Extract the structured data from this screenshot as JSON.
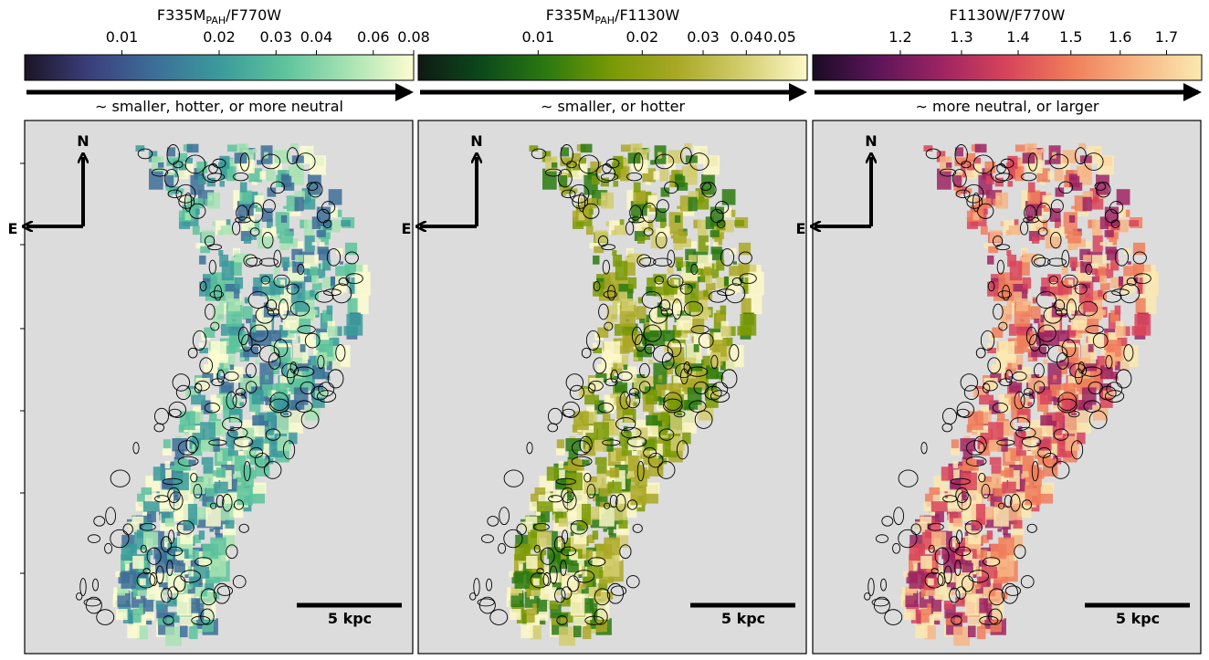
{
  "chart_data": [
    {
      "type": "colorbar",
      "title": [
        "F335M",
        "PAH",
        "/F770W"
      ],
      "log": true,
      "xlim": [
        0.005,
        0.08
      ],
      "xticks": [
        0.01,
        0.02,
        0.03,
        0.04,
        0.06,
        0.08
      ],
      "colormap": [
        "#1b1424",
        "#3b3f7c",
        "#3d6e98",
        "#3b9a9b",
        "#5cc39c",
        "#a7e3b3",
        "#fdfdd0"
      ],
      "annotation": "∼ smaller, hotter, or more neutral",
      "compass": [
        "N",
        "E"
      ],
      "scalebar": "5 kpc"
    },
    {
      "type": "colorbar",
      "title": [
        "F335M",
        "PAH",
        "/F1130W"
      ],
      "log": true,
      "xlim": [
        0.0045,
        0.06
      ],
      "xticks": [
        0.01,
        0.02,
        0.03,
        0.04,
        0.05
      ],
      "colormap": [
        "#0f1a13",
        "#0c4a1c",
        "#2d7a10",
        "#7a9a05",
        "#aaa826",
        "#d2cd6e",
        "#fdf8c8"
      ],
      "annotation": "∼ smaller, or hotter",
      "compass": [
        "N",
        "E"
      ],
      "scalebar": "5 kpc"
    },
    {
      "type": "colorbar",
      "title": "F1130W/F770W",
      "log": true,
      "xlim": [
        1.07,
        1.78
      ],
      "xticks": [
        1.2,
        1.3,
        1.4,
        1.5,
        1.6,
        1.7
      ],
      "colormap": [
        "#1a0b24",
        "#5c1559",
        "#9e2462",
        "#d8445b",
        "#f07e5b",
        "#f7b584",
        "#fbe9b0"
      ],
      "annotation": "∼ more neutral, or larger",
      "compass": [
        "N",
        "E"
      ],
      "scalebar": "5 kpc"
    }
  ]
}
